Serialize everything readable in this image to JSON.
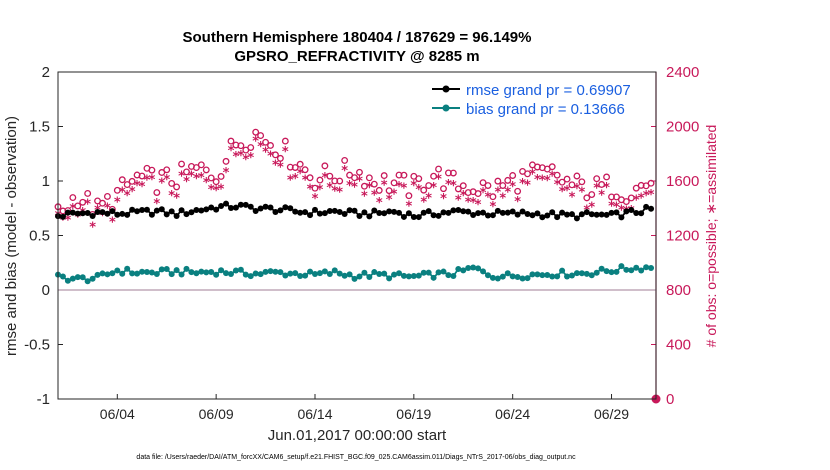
{
  "chart_data": {
    "type": "line",
    "title": "Southern Hemisphere 180404 / 187629 = 96.149%",
    "subtitle": "GPSRO_REFRACTIVITY @ 8285 m",
    "xlabel": "Jun.01,2017 00:00:00 start",
    "ylabel": "rmse and bias (model - observation)",
    "ylabel_right": "# of obs: o=possible; ∗=assimilated",
    "xlim": [
      1,
      31.25
    ],
    "ylim": [
      -1,
      2
    ],
    "ylim_right": [
      0,
      2400
    ],
    "x_ticks": [
      4,
      9,
      14,
      19,
      24,
      29
    ],
    "x_tick_labels": [
      "06/04",
      "06/09",
      "06/14",
      "06/19",
      "06/24",
      "06/29"
    ],
    "y_ticks": [
      -1,
      -0.5,
      0,
      0.5,
      1,
      1.5,
      2
    ],
    "y_tick_labels": [
      "-1",
      "-0.5",
      "0",
      "0.5",
      "1",
      "1.5",
      "2"
    ],
    "y_ticks_right": [
      0,
      400,
      800,
      1200,
      1600,
      2000,
      2400
    ],
    "y_tick_labels_right": [
      "0",
      "400",
      "800",
      "1200",
      "1600",
      "2000",
      "2400"
    ],
    "legend_location": "top-right",
    "zero_line": 0,
    "colors": {
      "rmse": "#000000",
      "bias": "#0a8080",
      "obs": "#c8195a",
      "zero": "#c0a8b8",
      "legend_text": "#1a5fe0",
      "right_axis": "#c8195a"
    },
    "series": [
      {
        "name": "rmse grand pr = 0.69907",
        "axis": "left",
        "anchors": [
          [
            1,
            0.68
          ],
          [
            2,
            0.7
          ],
          [
            3,
            0.71
          ],
          [
            4,
            0.7
          ],
          [
            5,
            0.71
          ],
          [
            6,
            0.72
          ],
          [
            7,
            0.7
          ],
          [
            8,
            0.73
          ],
          [
            9,
            0.76
          ],
          [
            10,
            0.77
          ],
          [
            11,
            0.75
          ],
          [
            12,
            0.74
          ],
          [
            13,
            0.72
          ],
          [
            14,
            0.71
          ],
          [
            15,
            0.72
          ],
          [
            16,
            0.7
          ],
          [
            17,
            0.7
          ],
          [
            18,
            0.72
          ],
          [
            19,
            0.68
          ],
          [
            20,
            0.7
          ],
          [
            21,
            0.72
          ],
          [
            22,
            0.71
          ],
          [
            23,
            0.7
          ],
          [
            24,
            0.7
          ],
          [
            25,
            0.7
          ],
          [
            26,
            0.69
          ],
          [
            27,
            0.68
          ],
          [
            28,
            0.69
          ],
          [
            29,
            0.68
          ],
          [
            30,
            0.71
          ],
          [
            31,
            0.74
          ]
        ]
      },
      {
        "name": "bias grand pr = 0.13666",
        "axis": "left",
        "anchors": [
          [
            1,
            0.12
          ],
          [
            2,
            0.1
          ],
          [
            3,
            0.11
          ],
          [
            4,
            0.18
          ],
          [
            5,
            0.16
          ],
          [
            6,
            0.16
          ],
          [
            7,
            0.17
          ],
          [
            8,
            0.16
          ],
          [
            9,
            0.17
          ],
          [
            10,
            0.16
          ],
          [
            11,
            0.15
          ],
          [
            12,
            0.16
          ],
          [
            13,
            0.15
          ],
          [
            14,
            0.14
          ],
          [
            15,
            0.16
          ],
          [
            16,
            0.13
          ],
          [
            17,
            0.14
          ],
          [
            18,
            0.13
          ],
          [
            19,
            0.12
          ],
          [
            20,
            0.14
          ],
          [
            21,
            0.15
          ],
          [
            22,
            0.2
          ],
          [
            23,
            0.13
          ],
          [
            24,
            0.13
          ],
          [
            25,
            0.14
          ],
          [
            26,
            0.15
          ],
          [
            27,
            0.15
          ],
          [
            28,
            0.16
          ],
          [
            29,
            0.18
          ],
          [
            30,
            0.2
          ],
          [
            31,
            0.21
          ]
        ]
      },
      {
        "name": "possible obs",
        "axis": "right",
        "marker": "o",
        "anchors": [
          [
            1,
            1350
          ],
          [
            2,
            1500
          ],
          [
            3,
            1380
          ],
          [
            4,
            1500
          ],
          [
            5,
            1620
          ],
          [
            6,
            1600
          ],
          [
            7,
            1620
          ],
          [
            8,
            1680
          ],
          [
            9,
            1650
          ],
          [
            10,
            1880
          ],
          [
            11,
            1950
          ],
          [
            12,
            1870
          ],
          [
            13,
            1750
          ],
          [
            14,
            1620
          ],
          [
            15,
            1650
          ],
          [
            16,
            1680
          ],
          [
            17,
            1600
          ],
          [
            18,
            1580
          ],
          [
            19,
            1550
          ],
          [
            20,
            1650
          ],
          [
            21,
            1580
          ],
          [
            22,
            1560
          ],
          [
            23,
            1530
          ],
          [
            24,
            1600
          ],
          [
            25,
            1640
          ],
          [
            26,
            1650
          ],
          [
            27,
            1570
          ],
          [
            28,
            1540
          ],
          [
            29,
            1560
          ],
          [
            30,
            1520
          ],
          [
            31,
            1600
          ]
        ]
      },
      {
        "name": "assimilated obs",
        "axis": "right",
        "marker": "*",
        "anchors": [
          [
            1,
            1300
          ],
          [
            2,
            1440
          ],
          [
            3,
            1320
          ],
          [
            4,
            1440
          ],
          [
            5,
            1560
          ],
          [
            6,
            1540
          ],
          [
            7,
            1570
          ],
          [
            8,
            1620
          ],
          [
            9,
            1590
          ],
          [
            10,
            1820
          ],
          [
            11,
            1890
          ],
          [
            12,
            1810
          ],
          [
            13,
            1690
          ],
          [
            14,
            1560
          ],
          [
            15,
            1590
          ],
          [
            16,
            1620
          ],
          [
            17,
            1540
          ],
          [
            18,
            1520
          ],
          [
            19,
            1490
          ],
          [
            20,
            1590
          ],
          [
            21,
            1520
          ],
          [
            22,
            1500
          ],
          [
            23,
            1470
          ],
          [
            24,
            1540
          ],
          [
            25,
            1580
          ],
          [
            26,
            1590
          ],
          [
            27,
            1510
          ],
          [
            28,
            1480
          ],
          [
            29,
            1500
          ],
          [
            30,
            1460
          ],
          [
            31,
            1540
          ]
        ]
      }
    ],
    "final_obs_count": 0
  },
  "footer": {
    "text": "data file: /Users/raeder/DAI/ATM_forcXX/CAM6_setup/f.e21.FHIST_BGC.f09_025.CAM6assim.011/Diags_NTrS_2017-06/obs_diag_output.nc"
  }
}
